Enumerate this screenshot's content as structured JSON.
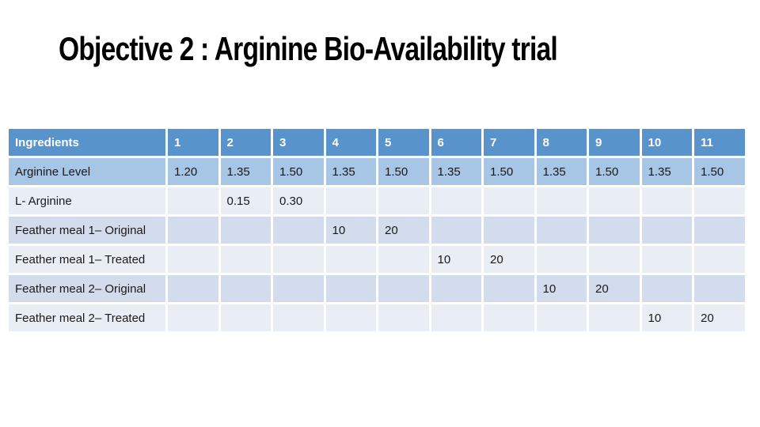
{
  "slide": {
    "title": "Objective 2 : Arginine Bio-Availability trial"
  },
  "table": {
    "columns": [
      "Ingredients",
      "1",
      "2",
      "3",
      "4",
      "5",
      "6",
      "7",
      "8",
      "9",
      "10",
      "11"
    ],
    "rows": [
      {
        "label": "Arginine Level",
        "band": "blue",
        "values": [
          "1.20",
          "1.35",
          "1.50",
          "1.35",
          "1.50",
          "1.35",
          "1.50",
          "1.35",
          "1.50",
          "1.35",
          "1.50"
        ]
      },
      {
        "label": "L- Arginine",
        "band": "light",
        "values": [
          "",
          "0.15",
          "0.30",
          "",
          "",
          "",
          "",
          "",
          "",
          "",
          ""
        ]
      },
      {
        "label": "Feather meal 1– Original",
        "band": "dark",
        "values": [
          "",
          "",
          "",
          "10",
          "20",
          "",
          "",
          "",
          "",
          "",
          ""
        ]
      },
      {
        "label": "Feather meal 1– Treated",
        "band": "light",
        "values": [
          "",
          "",
          "",
          "",
          "",
          "10",
          "20",
          "",
          "",
          "",
          ""
        ]
      },
      {
        "label": "Feather meal 2– Original",
        "band": "dark",
        "values": [
          "",
          "",
          "",
          "",
          "",
          "",
          "",
          "10",
          "20",
          "",
          ""
        ]
      },
      {
        "label": "Feather meal 2– Treated",
        "band": "light",
        "values": [
          "",
          "",
          "",
          "",
          "",
          "",
          "",
          "",
          "",
          "10",
          "20"
        ]
      }
    ],
    "colors": {
      "header_bg": "#5993cc",
      "header_text": "#ffffff",
      "level_row_bg": "#a7c5e5",
      "band_light": "#e9edf4",
      "band_dark": "#d3dcec",
      "cell_text": "#1a1a1a",
      "title_text": "#000000",
      "grid_gap": "#ffffff"
    }
  }
}
